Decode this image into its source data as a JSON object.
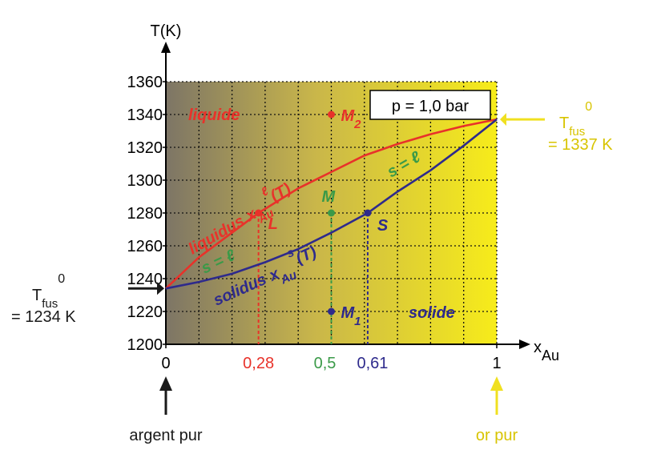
{
  "chart_data": {
    "type": "line",
    "ylabel": "T(K)",
    "xlabel": "x",
    "xlabel_sub": "Au",
    "xlim": [
      0,
      1
    ],
    "ylim": [
      1200,
      1360
    ],
    "xticks": [
      0,
      1
    ],
    "yticks": [
      1200,
      1220,
      1240,
      1260,
      1280,
      1300,
      1320,
      1340,
      1360
    ],
    "grid": true,
    "series": [
      {
        "name": "liquidus",
        "color": "#e8322a",
        "symbol": "x",
        "symbol_sub": "Au",
        "symbol_sup": "ℓ",
        "arg": "(T)",
        "x": [
          0,
          0.1,
          0.2,
          0.28,
          0.4,
          0.5,
          0.6,
          0.7,
          0.8,
          0.9,
          1
        ],
        "values": [
          1234,
          1253,
          1268,
          1280,
          1295,
          1305,
          1315,
          1322,
          1328,
          1333,
          1337
        ]
      },
      {
        "name": "solidus",
        "color": "#2e2a8c",
        "symbol": "x",
        "symbol_sub": "Au",
        "symbol_sup": "s",
        "arg": "(T)",
        "x": [
          0,
          0.1,
          0.2,
          0.3,
          0.4,
          0.5,
          0.61,
          0.7,
          0.8,
          0.9,
          1
        ],
        "values": [
          1234,
          1238,
          1243,
          1250,
          1258,
          1268,
          1280,
          1293,
          1306,
          1321,
          1337
        ]
      }
    ],
    "points": [
      {
        "label": "M",
        "sub": "2",
        "x": 0.5,
        "y": 1340,
        "color": "#e8322a"
      },
      {
        "label": "M",
        "x": 0.5,
        "y": 1280,
        "color": "#3a9a48"
      },
      {
        "label": "M",
        "sub": "1",
        "x": 0.5,
        "y": 1220,
        "color": "#2e2a8c"
      },
      {
        "label": "L",
        "x": 0.28,
        "y": 1280,
        "color": "#e8322a"
      },
      {
        "label": "S",
        "x": 0.61,
        "y": 1280,
        "color": "#2e2a8c"
      }
    ],
    "composition_ticks": [
      {
        "value": 0.28,
        "label": "0,28",
        "color": "#e8322a"
      },
      {
        "value": 0.5,
        "label": "0,5",
        "color": "#3a9a48"
      },
      {
        "value": 0.61,
        "label": "0,61",
        "color": "#2e2a8c"
      }
    ],
    "regions": [
      "liquide",
      "solide"
    ],
    "equilibrium_label": "s = ℓ",
    "pressure_label": "p = 1,0 bar",
    "melting": [
      {
        "symbol": "T",
        "sub": "fus",
        "sup": "0",
        "value": 1234,
        "label": "= 1234 K",
        "color": "#1a1a1a"
      },
      {
        "symbol": "T",
        "sub": "fus",
        "sup": "0",
        "value": 1337,
        "label": "= 1337 K",
        "color": "#d8c400"
      }
    ],
    "pure_labels": [
      "argent pur",
      "or pur"
    ]
  }
}
